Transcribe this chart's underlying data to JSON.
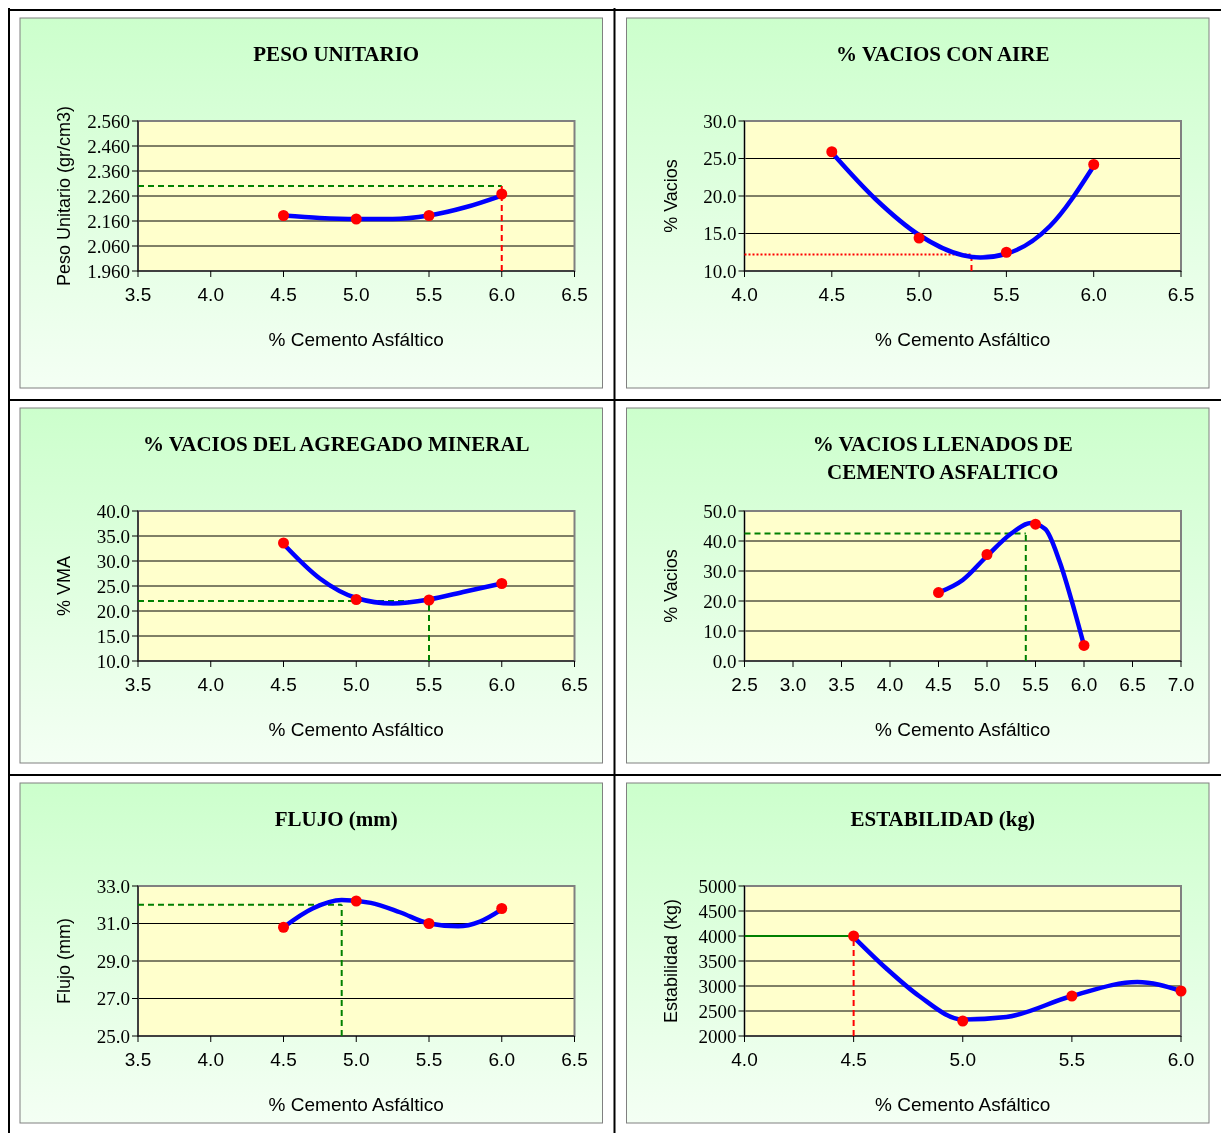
{
  "chart_data": [
    {
      "type": "scatter",
      "title": "PESO UNITARIO",
      "xlabel": "% Cemento Asfáltico",
      "ylabel": "Peso Unitario (gr/cm3)",
      "xlim": [
        3.5,
        6.5
      ],
      "xticks": [
        {
          "value": 3.5,
          "label": "3.5"
        },
        {
          "value": 4,
          "label": "4.0"
        },
        {
          "value": 4.5,
          "label": "4.5"
        },
        {
          "value": 5,
          "label": "5.0"
        },
        {
          "value": 5.5,
          "label": "5.5"
        },
        {
          "value": 6,
          "label": "6.0"
        },
        {
          "value": 6.5,
          "label": "6.5"
        }
      ],
      "ylim": [
        1.96,
        2.56
      ],
      "yticks": [
        {
          "value": 1.96,
          "label": "1.960"
        },
        {
          "value": 2.06,
          "label": "2.060"
        },
        {
          "value": 2.16,
          "label": "2.160"
        },
        {
          "value": 2.26,
          "label": "2.260"
        },
        {
          "value": 2.36,
          "label": "2.360"
        },
        {
          "value": 2.46,
          "label": "2.460"
        },
        {
          "value": 2.56,
          "label": "2.560"
        }
      ],
      "grid": "y",
      "series": [
        {
          "type": "line",
          "color": "#0000ff",
          "marker": "none",
          "x": [
            4.5,
            4.75,
            5.0,
            5.25,
            5.5,
            5.75,
            6.0
          ],
          "values": [
            2.182,
            2.172,
            2.168,
            2.168,
            2.182,
            2.215,
            2.262
          ]
        },
        {
          "type": "scatter",
          "color": "#ff0000",
          "marker": "circle",
          "x": [
            4.5,
            5.0,
            5.5,
            6.0
          ],
          "values": [
            2.182,
            2.168,
            2.182,
            2.268
          ]
        }
      ],
      "ref_lines": [
        {
          "axis": "y",
          "value": 2.3,
          "color": "#008000",
          "line_style": "dashed"
        },
        {
          "axis": "x",
          "value": 6.0,
          "color": "#ff0000",
          "line_style": "dashed"
        }
      ]
    },
    {
      "type": "scatter",
      "title": "% VACIOS CON AIRE",
      "xlabel": "% Cemento Asfáltico",
      "ylabel": "% Vacios",
      "xlim": [
        4,
        6.5
      ],
      "xticks": [
        {
          "value": 4,
          "label": "4.0"
        },
        {
          "value": 4.5,
          "label": "4.5"
        },
        {
          "value": 5,
          "label": "5.0"
        },
        {
          "value": 5.5,
          "label": "5.5"
        },
        {
          "value": 6,
          "label": "6.0"
        },
        {
          "value": 6.5,
          "label": "6.5"
        }
      ],
      "ylim": [
        10,
        30
      ],
      "yticks": [
        {
          "value": 10,
          "label": "10.0"
        },
        {
          "value": 15,
          "label": "15.0"
        },
        {
          "value": 20,
          "label": "20.0"
        },
        {
          "value": 25,
          "label": "25.0"
        },
        {
          "value": 30,
          "label": "30.0"
        }
      ],
      "grid": "y",
      "series": [
        {
          "type": "line",
          "color": "#0000ff",
          "marker": "none",
          "x": [
            4.5,
            4.75,
            5.0,
            5.25,
            5.35,
            5.5,
            5.75,
            6.0
          ],
          "values": [
            25.8,
            19.6,
            14.8,
            12.1,
            11.8,
            12.3,
            16.0,
            24.0
          ]
        },
        {
          "type": "scatter",
          "color": "#ff0000",
          "marker": "circle",
          "x": [
            4.5,
            5.0,
            5.5,
            6.0
          ],
          "values": [
            25.9,
            14.4,
            12.5,
            24.2
          ]
        }
      ],
      "ref_lines": [
        {
          "axis": "y",
          "value": 12.2,
          "color": "#ff0000",
          "line_style": "dotted"
        },
        {
          "axis": "x",
          "value": 5.3,
          "color": "#ff0000",
          "line_style": "dashed"
        }
      ]
    },
    {
      "type": "scatter",
      "title": "% VACIOS DEL AGREGADO MINERAL",
      "xlabel": "% Cemento Asfáltico",
      "ylabel": "% VMA",
      "xlim": [
        3.5,
        6.5
      ],
      "xticks": [
        {
          "value": 3.5,
          "label": "3.5"
        },
        {
          "value": 4,
          "label": "4.0"
        },
        {
          "value": 4.5,
          "label": "4.5"
        },
        {
          "value": 5,
          "label": "5.0"
        },
        {
          "value": 5.5,
          "label": "5.5"
        },
        {
          "value": 6,
          "label": "6.0"
        },
        {
          "value": 6.5,
          "label": "6.5"
        }
      ],
      "ylim": [
        10,
        40
      ],
      "yticks": [
        {
          "value": 10,
          "label": "10.0"
        },
        {
          "value": 15,
          "label": "15.0"
        },
        {
          "value": 20,
          "label": "20.0"
        },
        {
          "value": 25,
          "label": "25.0"
        },
        {
          "value": 30,
          "label": "30.0"
        },
        {
          "value": 35,
          "label": "35.0"
        },
        {
          "value": 40,
          "label": "40.0"
        }
      ],
      "grid": "y",
      "series": [
        {
          "type": "line",
          "color": "#0000ff",
          "marker": "none",
          "x": [
            4.5,
            4.75,
            5.0,
            5.25,
            5.5,
            5.75,
            6.0
          ],
          "values": [
            33.4,
            26.5,
            22.6,
            21.5,
            22.3,
            23.9,
            25.5
          ]
        },
        {
          "type": "scatter",
          "color": "#ff0000",
          "marker": "circle",
          "x": [
            4.5,
            5.0,
            5.5,
            6.0
          ],
          "values": [
            33.6,
            22.3,
            22.2,
            25.5
          ]
        }
      ],
      "ref_lines": [
        {
          "axis": "y",
          "value": 22.0,
          "color": "#008000",
          "line_style": "dashed"
        },
        {
          "axis": "x",
          "value": 5.5,
          "color": "#008000",
          "line_style": "dashed"
        }
      ]
    },
    {
      "type": "scatter",
      "title": "% VACIOS LLENADOS DE\nCEMENTO ASFALTICO",
      "xlabel": "% Cemento Asfáltico",
      "ylabel": "% Vacios",
      "xlim": [
        2.5,
        7
      ],
      "xticks": [
        {
          "value": 2.5,
          "label": "2.5"
        },
        {
          "value": 3,
          "label": "3.0"
        },
        {
          "value": 3.5,
          "label": "3.5"
        },
        {
          "value": 4,
          "label": "4.0"
        },
        {
          "value": 4.5,
          "label": "4.5"
        },
        {
          "value": 5,
          "label": "5.0"
        },
        {
          "value": 5.5,
          "label": "5.5"
        },
        {
          "value": 6,
          "label": "6.0"
        },
        {
          "value": 6.5,
          "label": "6.5"
        },
        {
          "value": 7,
          "label": "7.0"
        }
      ],
      "ylim": [
        0,
        50
      ],
      "yticks": [
        {
          "value": 0,
          "label": "0.0"
        },
        {
          "value": 10,
          "label": "10.0"
        },
        {
          "value": 20,
          "label": "20.0"
        },
        {
          "value": 30,
          "label": "30.0"
        },
        {
          "value": 40,
          "label": "40.0"
        },
        {
          "value": 50,
          "label": "50.0"
        }
      ],
      "grid": "y",
      "series": [
        {
          "type": "line",
          "color": "#0000ff",
          "marker": "none",
          "x": [
            4.5,
            4.75,
            5.0,
            5.25,
            5.45,
            5.6,
            5.75,
            5.9,
            6.0
          ],
          "values": [
            22.8,
            27,
            35,
            42.5,
            46.0,
            44,
            33,
            17,
            5.2
          ]
        },
        {
          "type": "scatter",
          "color": "#ff0000",
          "marker": "circle",
          "x": [
            4.5,
            5.0,
            5.5,
            6.0
          ],
          "values": [
            22.8,
            35.5,
            45.6,
            5.2
          ]
        }
      ],
      "ref_lines": [
        {
          "axis": "y",
          "value": 42.5,
          "color": "#008000",
          "line_style": "dashed"
        },
        {
          "axis": "x",
          "value": 5.4,
          "color": "#008000",
          "line_style": "dashed"
        }
      ]
    },
    {
      "type": "scatter",
      "title": "FLUJO (mm)",
      "xlabel": "% Cemento Asfáltico",
      "ylabel": "Flujo (mm)",
      "xlim": [
        3.5,
        6.5
      ],
      "xticks": [
        {
          "value": 3.5,
          "label": "3.5"
        },
        {
          "value": 4,
          "label": "4.0"
        },
        {
          "value": 4.5,
          "label": "4.5"
        },
        {
          "value": 5,
          "label": "5.0"
        },
        {
          "value": 5.5,
          "label": "5.5"
        },
        {
          "value": 6,
          "label": "6.0"
        },
        {
          "value": 6.5,
          "label": "6.5"
        }
      ],
      "ylim": [
        25,
        33
      ],
      "yticks": [
        {
          "value": 25,
          "label": "25.0"
        },
        {
          "value": 27,
          "label": "27.0"
        },
        {
          "value": 29,
          "label": "29.0"
        },
        {
          "value": 31,
          "label": "31.0"
        },
        {
          "value": 33,
          "label": "33.0"
        }
      ],
      "grid": "y",
      "series": [
        {
          "type": "line",
          "color": "#0000ff",
          "marker": "none",
          "x": [
            4.5,
            4.7,
            4.9,
            5.1,
            5.3,
            5.5,
            5.7,
            5.85,
            6.0
          ],
          "values": [
            30.8,
            31.8,
            32.25,
            32.1,
            31.6,
            31.0,
            30.85,
            31.1,
            31.75
          ]
        },
        {
          "type": "scatter",
          "color": "#ff0000",
          "marker": "circle",
          "x": [
            4.5,
            5.0,
            5.5,
            6.0
          ],
          "values": [
            30.8,
            32.2,
            31.0,
            31.8
          ]
        }
      ],
      "ref_lines": [
        {
          "axis": "y",
          "value": 32.0,
          "color": "#008000",
          "line_style": "dashed"
        },
        {
          "axis": "x",
          "value": 4.9,
          "color": "#008000",
          "line_style": "dashed"
        }
      ]
    },
    {
      "type": "scatter",
      "title": "ESTABILIDAD (kg)",
      "xlabel": "% Cemento Asfáltico",
      "ylabel": "Estabilidad (kg)",
      "xlim": [
        4,
        6
      ],
      "xticks": [
        {
          "value": 4,
          "label": "4.0"
        },
        {
          "value": 4.5,
          "label": "4.5"
        },
        {
          "value": 5,
          "label": "5.0"
        },
        {
          "value": 5.5,
          "label": "5.5"
        },
        {
          "value": 6,
          "label": "6.0"
        }
      ],
      "ylim": [
        2000,
        5000
      ],
      "yticks": [
        2000,
        2500,
        3000,
        3500,
        4000,
        4500,
        5000
      ],
      "grid": "y",
      "series": [
        {
          "type": "line",
          "color": "#0000ff",
          "marker": "none",
          "x": [
            4.5,
            4.65,
            4.8,
            5.0,
            5.2,
            5.5,
            5.8,
            6.0
          ],
          "values": [
            3980,
            3350,
            2800,
            2330,
            2380,
            2800,
            3080,
            2900
          ]
        },
        {
          "type": "scatter",
          "color": "#ff0000",
          "marker": "circle",
          "x": [
            4.5,
            5.0,
            5.5,
            6.0
          ],
          "values": [
            4000,
            2300,
            2800,
            2900
          ]
        }
      ],
      "ref_lines": [
        {
          "axis": "y",
          "value": 4000,
          "color": "#008000",
          "line_style": "solid"
        },
        {
          "axis": "x",
          "value": 4.5,
          "color": "#ff0000",
          "line_style": "dashed"
        }
      ]
    }
  ]
}
